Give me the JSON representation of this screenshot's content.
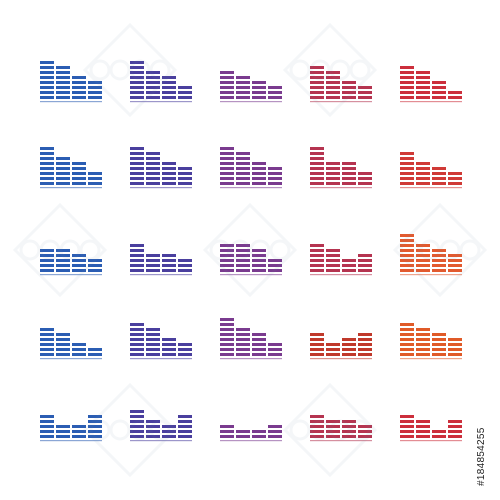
{
  "icon_set": {
    "icon_name": "equalizer-bars-icon",
    "rows": [
      {
        "colors": [
          "#2b5db3",
          "#4a3f9e",
          "#7a3b8f",
          "#b53450",
          "#cc2f3c"
        ],
        "bar_levels": [
          [
            8,
            7,
            5,
            4
          ],
          [
            8,
            6,
            5,
            3
          ],
          [
            6,
            5,
            4,
            3
          ],
          [
            7,
            6,
            4,
            3
          ],
          [
            7,
            6,
            4,
            2
          ]
        ]
      },
      {
        "colors": [
          "#2b5db3",
          "#4a3f9e",
          "#7a3b8f",
          "#b53450",
          "#d03a36"
        ],
        "bar_levels": [
          [
            8,
            6,
            5,
            3
          ],
          [
            8,
            7,
            5,
            4
          ],
          [
            8,
            7,
            5,
            4
          ],
          [
            8,
            5,
            5,
            3
          ],
          [
            7,
            5,
            4,
            3
          ]
        ]
      },
      {
        "colors": [
          "#2b5db3",
          "#4a3f9e",
          "#7a3b8f",
          "#b53450",
          "#e25a2f"
        ],
        "bar_levels": [
          [
            5,
            5,
            4,
            3
          ],
          [
            6,
            4,
            4,
            3
          ],
          [
            6,
            6,
            5,
            3
          ],
          [
            6,
            5,
            3,
            4
          ],
          [
            8,
            6,
            5,
            4
          ]
        ]
      },
      {
        "colors": [
          "#2b5db3",
          "#4a3f9e",
          "#7a3b8f",
          "#c0392b",
          "#e05a28"
        ],
        "bar_levels": [
          [
            6,
            5,
            3,
            2
          ],
          [
            7,
            6,
            4,
            3
          ],
          [
            8,
            6,
            5,
            3
          ],
          [
            5,
            3,
            4,
            5
          ],
          [
            7,
            6,
            5,
            4
          ]
        ]
      },
      {
        "colors": [
          "#2b5db3",
          "#4a3f9e",
          "#7a3b8f",
          "#b53450",
          "#cc2f3c"
        ],
        "bar_levels": [
          [
            5,
            3,
            3,
            5
          ],
          [
            6,
            4,
            3,
            5
          ],
          [
            3,
            2,
            2,
            3
          ],
          [
            5,
            4,
            4,
            3
          ],
          [
            5,
            4,
            2,
            4
          ]
        ]
      }
    ]
  },
  "watermark_color": "#6f8ca8",
  "stock_id": "#184854255"
}
